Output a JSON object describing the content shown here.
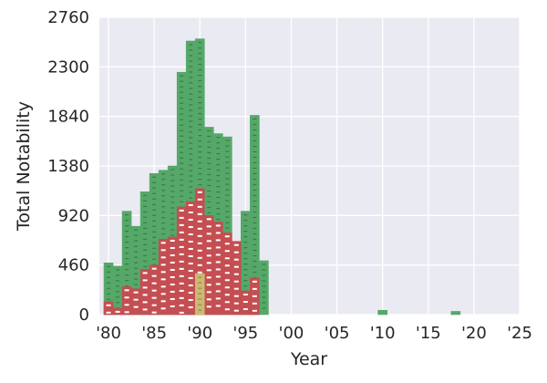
{
  "chart_data": {
    "type": "bar",
    "title": "",
    "xlabel": "Year",
    "ylabel": "Total Notability",
    "xlim": [
      1979,
      2025
    ],
    "ylim": [
      0,
      2760
    ],
    "x_ticks": [
      {
        "value": 1980,
        "label": "'80"
      },
      {
        "value": 1985,
        "label": "'85"
      },
      {
        "value": 1990,
        "label": "'90"
      },
      {
        "value": 1995,
        "label": "'95"
      },
      {
        "value": 2000,
        "label": "'00"
      },
      {
        "value": 2005,
        "label": "'05"
      },
      {
        "value": 2010,
        "label": "'10"
      },
      {
        "value": 2015,
        "label": "'15"
      },
      {
        "value": 2020,
        "label": "'20"
      },
      {
        "value": 2025,
        "label": "'25"
      }
    ],
    "y_ticks": [
      {
        "value": 0,
        "label": "0"
      },
      {
        "value": 460,
        "label": "460"
      },
      {
        "value": 920,
        "label": "920"
      },
      {
        "value": 1380,
        "label": "1380"
      },
      {
        "value": 1840,
        "label": "1840"
      },
      {
        "value": 2300,
        "label": "2300"
      },
      {
        "value": 2760,
        "label": "2760"
      }
    ],
    "grid": true,
    "background": "#eaeaf2",
    "categories": [
      1980,
      1981,
      1982,
      1983,
      1984,
      1985,
      1986,
      1987,
      1988,
      1989,
      1990,
      1991,
      1992,
      1993,
      1994,
      1995,
      1996,
      1997,
      1998,
      2010,
      2018
    ],
    "series": [
      {
        "color": "#55a868",
        "values": [
          480,
          450,
          960,
          820,
          1140,
          1310,
          1340,
          1380,
          2250,
          2540,
          2560,
          1740,
          1680,
          1650,
          640,
          960,
          1850,
          500,
          0,
          40,
          30
        ]
      },
      {
        "color": "#c44e52",
        "values": [
          120,
          60,
          260,
          240,
          420,
          460,
          700,
          720,
          1000,
          1050,
          1170,
          920,
          860,
          760,
          680,
          220,
          340,
          0,
          0,
          0,
          0
        ]
      },
      {
        "color": "#ccb974",
        "values": [
          0,
          0,
          0,
          0,
          0,
          0,
          0,
          0,
          0,
          0,
          380,
          0,
          0,
          0,
          0,
          0,
          0,
          0,
          0,
          0,
          0
        ]
      }
    ]
  }
}
